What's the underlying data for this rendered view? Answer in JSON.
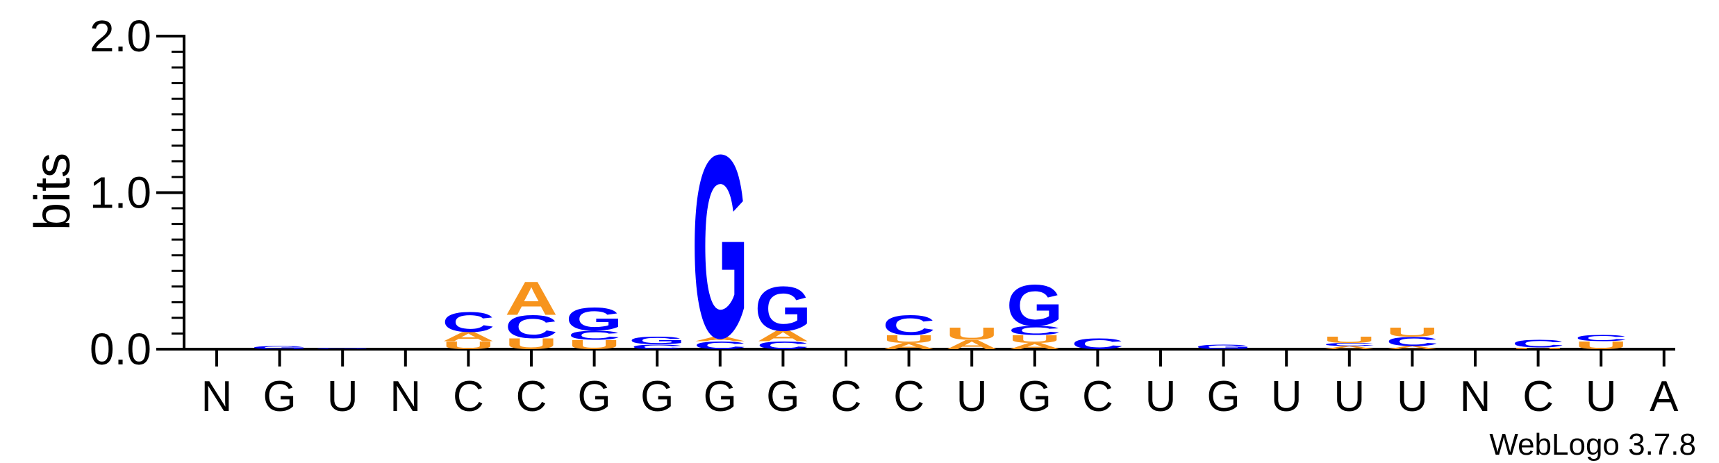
{
  "chart_data": {
    "type": "sequence-logo",
    "ylabel": "bits",
    "ylim": [
      0,
      2.0
    ],
    "yticks": [
      "0.0",
      "1.0",
      "2.0"
    ],
    "xlabels": [
      "N",
      "G",
      "U",
      "N",
      "C",
      "C",
      "G",
      "G",
      "G",
      "G",
      "C",
      "C",
      "U",
      "G",
      "C",
      "U",
      "G",
      "U",
      "U",
      "U",
      "N",
      "C",
      "U",
      "A"
    ],
    "footer": "WebLogo 3.7.8",
    "colors": {
      "A": "#f7941d",
      "U": "#f7941d",
      "G": "#0000ff",
      "C": "#0000ff"
    },
    "positions": [
      [],
      [
        [
          "G",
          0.02
        ]
      ],
      [
        [
          "G",
          0.005
        ]
      ],
      [],
      [
        [
          "U",
          0.05
        ],
        [
          "A",
          0.06
        ],
        [
          "C",
          0.13
        ]
      ],
      [
        [
          "U",
          0.07
        ],
        [
          "C",
          0.15
        ],
        [
          "A",
          0.22
        ]
      ],
      [
        [
          "U",
          0.06
        ],
        [
          "C",
          0.06
        ],
        [
          "G",
          0.15
        ]
      ],
      [
        [
          "C",
          0.03
        ],
        [
          "G",
          0.05
        ]
      ],
      [
        [
          "C",
          0.05
        ],
        [
          "A",
          0.03
        ],
        [
          "G",
          1.2
        ]
      ],
      [
        [
          "C",
          0.05
        ],
        [
          "A",
          0.07
        ],
        [
          "G",
          0.29
        ]
      ],
      [],
      [
        [
          "A",
          0.04
        ],
        [
          "U",
          0.05
        ],
        [
          "C",
          0.13
        ]
      ],
      [
        [
          "A",
          0.06
        ],
        [
          "U",
          0.08
        ]
      ],
      [
        [
          "A",
          0.04
        ],
        [
          "U",
          0.05
        ],
        [
          "C",
          0.06
        ],
        [
          "G",
          0.27
        ]
      ],
      [
        [
          "C",
          0.07
        ]
      ],
      [],
      [
        [
          "G",
          0.03
        ]
      ],
      [],
      [
        [
          "A",
          0.02
        ],
        [
          "C",
          0.02
        ],
        [
          "U",
          0.04
        ]
      ],
      [
        [
          "A",
          0.02
        ],
        [
          "C",
          0.06
        ],
        [
          "U",
          0.06
        ]
      ],
      [],
      [
        [
          "U",
          0.01
        ],
        [
          "C",
          0.05
        ]
      ],
      [
        [
          "U",
          0.05
        ],
        [
          "C",
          0.04
        ]
      ],
      []
    ]
  }
}
